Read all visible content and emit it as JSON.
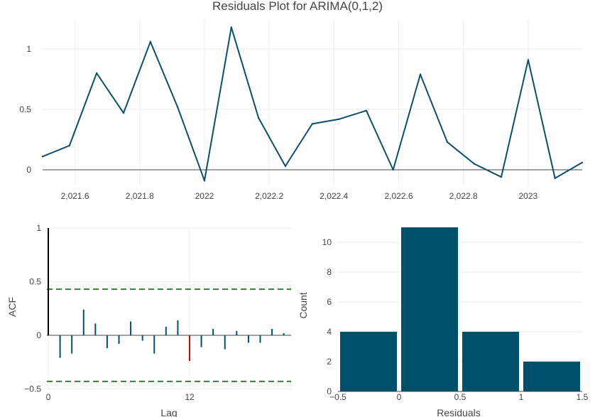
{
  "title": "Residuals Plot for ARIMA(0,1,2)",
  "colors": {
    "line": "#0b4f6c",
    "bar": "#00506b",
    "spike": "#00506b",
    "highlight": "#e00000",
    "band": "#228b22",
    "zero": "#444444"
  },
  "chart_data": [
    {
      "type": "line",
      "x": [
        2021.5,
        2021.583,
        2021.667,
        2021.75,
        2021.833,
        2021.917,
        2022.0,
        2022.083,
        2022.167,
        2022.25,
        2022.333,
        2022.417,
        2022.5,
        2022.583,
        2022.667,
        2022.75,
        2022.833,
        2022.917,
        2023.0,
        2023.083,
        2023.167
      ],
      "y": [
        0.11,
        0.2,
        0.8,
        0.47,
        1.06,
        0.52,
        -0.09,
        1.18,
        0.43,
        0.03,
        0.38,
        0.42,
        0.49,
        0.0,
        0.79,
        0.23,
        0.05,
        -0.06,
        0.91,
        -0.07,
        0.06
      ],
      "xticks": [
        2021.6,
        2021.8,
        2022.0,
        2022.2,
        2022.4,
        2022.6,
        2022.8,
        2023.0
      ],
      "xtick_labels": [
        "2,021.6",
        "2,021.8",
        "2022",
        "2,022.2",
        "2,022.4",
        "2,022.6",
        "2,022.8",
        "2023"
      ],
      "yticks": [
        0,
        0.5,
        1
      ],
      "ytick_labels": [
        "0",
        "0.5",
        "1"
      ],
      "xlim": [
        2021.5,
        2023.167
      ],
      "ylim": [
        -0.1,
        1.2
      ],
      "grid": true
    },
    {
      "type": "bar",
      "subtype": "acf",
      "ylabel": "ACF",
      "xlabel": "Lag",
      "lags": [
        0,
        1,
        2,
        3,
        4,
        5,
        6,
        7,
        8,
        9,
        10,
        11,
        12,
        13,
        14,
        15,
        16,
        17,
        18,
        19,
        20
      ],
      "values": [
        1.0,
        -0.21,
        -0.17,
        0.24,
        0.11,
        -0.12,
        -0.08,
        0.13,
        -0.05,
        -0.17,
        0.08,
        0.14,
        -0.24,
        -0.11,
        0.06,
        -0.13,
        0.04,
        -0.07,
        -0.07,
        0.06,
        0.02
      ],
      "highlight_lag": 12,
      "confidence_band": [
        -0.43,
        0.43
      ],
      "xticks": [
        0,
        12
      ],
      "xtick_labels": [
        "0",
        "12"
      ],
      "yticks": [
        -0.5,
        0,
        0.5,
        1
      ],
      "ytick_labels": [
        "−0.5",
        "0",
        "0.5",
        "1"
      ],
      "xlim": [
        0,
        20.5
      ],
      "ylim": [
        -0.5,
        1.0
      ],
      "grid": true
    },
    {
      "type": "bar",
      "subtype": "histogram",
      "xlabel": "Residuals",
      "ylabel": "Count",
      "bins": [
        [
          -0.5,
          0
        ],
        [
          0,
          0.5
        ],
        [
          0.5,
          1
        ],
        [
          1,
          1.5
        ]
      ],
      "values": [
        4,
        11,
        4,
        2
      ],
      "xticks": [
        -0.5,
        0,
        0.5,
        1,
        1.5
      ],
      "xtick_labels": [
        "−0.5",
        "0",
        "0.5",
        "1",
        "1.5"
      ],
      "yticks": [
        0,
        2,
        4,
        6,
        8,
        10
      ],
      "ytick_labels": [
        "0",
        "2",
        "4",
        "6",
        "8",
        "10"
      ],
      "xlim": [
        -0.5,
        1.5
      ],
      "ylim": [
        0,
        11
      ],
      "grid": true
    }
  ]
}
